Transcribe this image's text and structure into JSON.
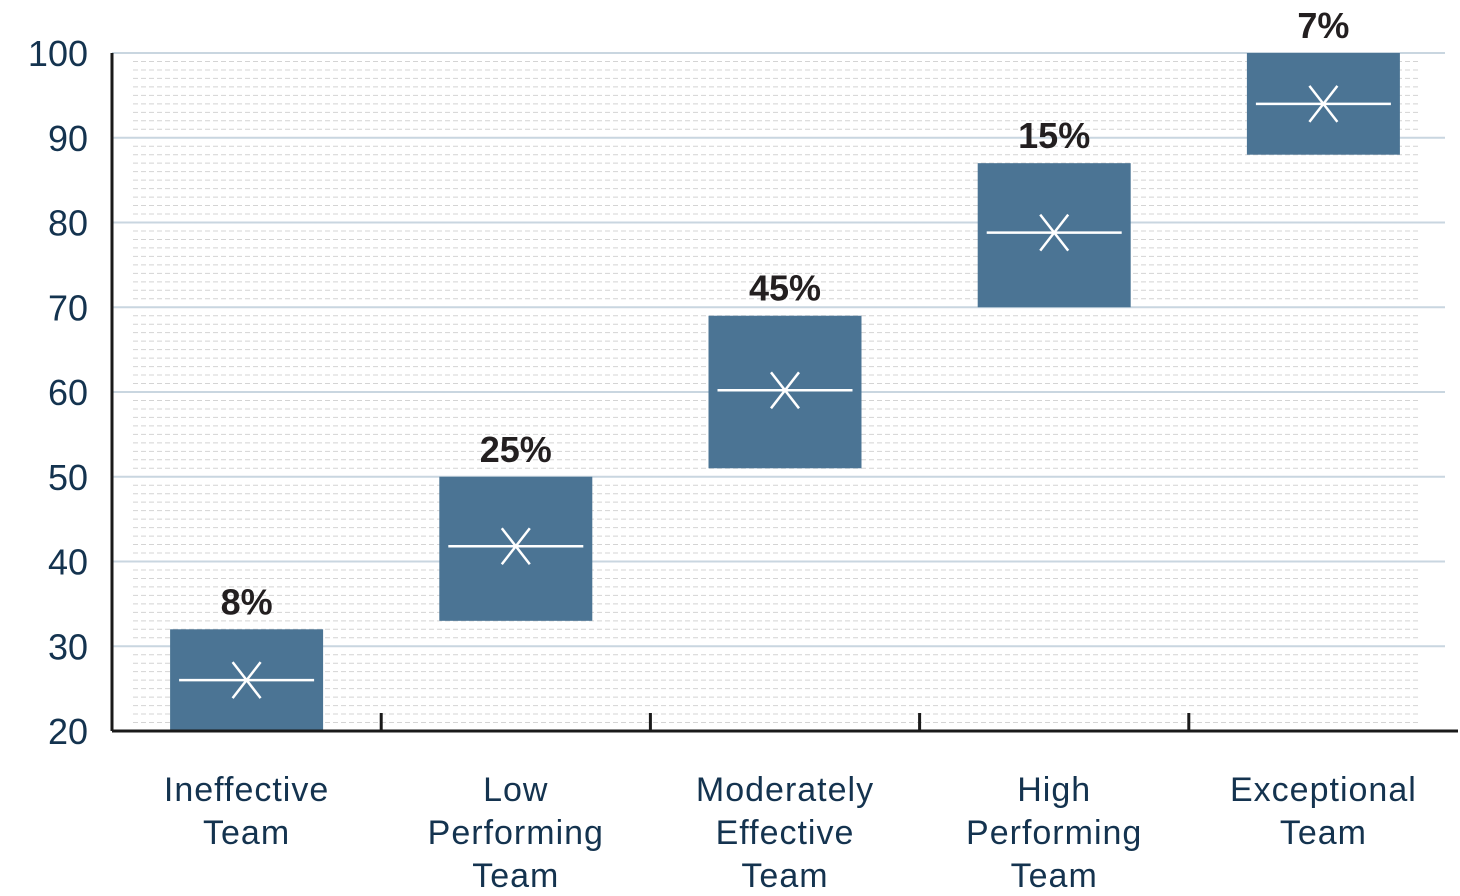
{
  "chart_data": {
    "type": "box",
    "title": "",
    "xlabel": "",
    "ylabel": "",
    "ylim": [
      20,
      100
    ],
    "yticks": [
      20,
      30,
      40,
      50,
      60,
      70,
      80,
      90,
      100
    ],
    "grid": true,
    "categories": [
      {
        "label_lines": [
          "Ineffective",
          "Team"
        ],
        "low": 20,
        "high": 32,
        "mean": 26,
        "percent_label": "8%"
      },
      {
        "label_lines": [
          "Low",
          "Performing",
          "Team"
        ],
        "low": 33,
        "high": 50,
        "mean": 41.8,
        "percent_label": "25%"
      },
      {
        "label_lines": [
          "Moderately",
          "Effective",
          "Team"
        ],
        "low": 51,
        "high": 69,
        "mean": 60.2,
        "percent_label": "45%"
      },
      {
        "label_lines": [
          "High",
          "Performing",
          "Team"
        ],
        "low": 70,
        "high": 87,
        "mean": 78.8,
        "percent_label": "15%"
      },
      {
        "label_lines": [
          "Exceptional",
          "Team"
        ],
        "low": 88,
        "high": 100,
        "mean": 94,
        "percent_label": "7%"
      }
    ],
    "colors": {
      "box": "#4b7494",
      "mean_marker": "#ffffff"
    }
  }
}
